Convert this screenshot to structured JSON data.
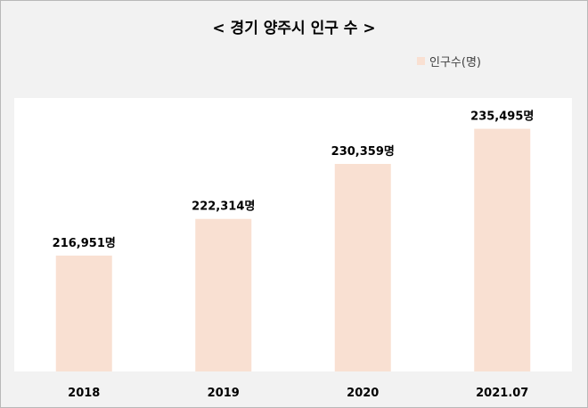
{
  "chart_data": {
    "type": "bar",
    "title": "< 경기 양주시 인구 수 >",
    "categories": [
      "2018",
      "2019",
      "2020",
      "2021.07"
    ],
    "series": [
      {
        "name": "인구수(명)",
        "values": [
          216951,
          222314,
          230359,
          235495
        ]
      }
    ],
    "data_labels": [
      "216,951명",
      "222,314명",
      "230,359명",
      "235,495명"
    ],
    "ylim": [
      200000,
      240000
    ],
    "grid": false,
    "legend": "top-right",
    "bar_color": "#f9e0d2"
  }
}
